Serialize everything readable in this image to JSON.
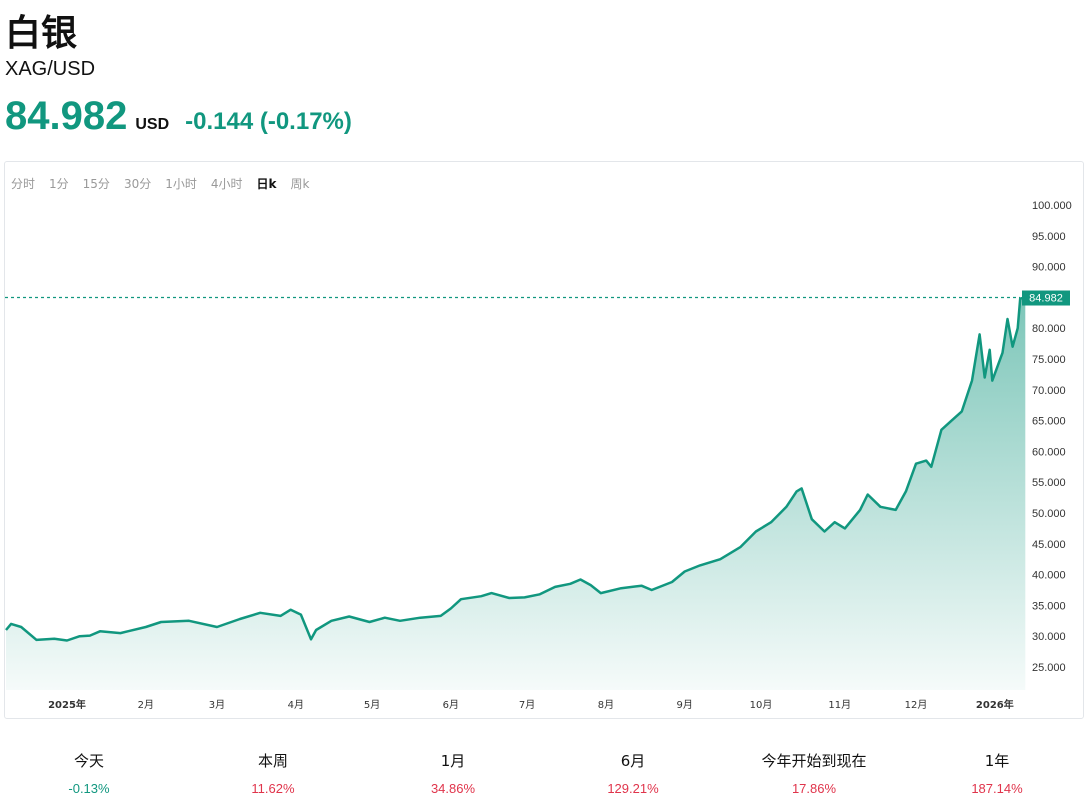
{
  "header": {
    "title": "白银",
    "symbol": "XAG/USD",
    "price": "84.982",
    "currency": "USD",
    "change": "-0.144 (-0.17%)",
    "change_color": "#11977f"
  },
  "tabs": [
    {
      "label": "分时"
    },
    {
      "label": "1分"
    },
    {
      "label": "15分"
    },
    {
      "label": "30分"
    },
    {
      "label": "1小时"
    },
    {
      "label": "4小时"
    },
    {
      "label": "日k",
      "active": true
    },
    {
      "label": "周k"
    }
  ],
  "stats": [
    {
      "label": "今天",
      "value": "-0.13%",
      "color": "#11977f"
    },
    {
      "label": "本周",
      "value": "11.62%",
      "color": "#e0344b"
    },
    {
      "label": "1月",
      "value": "34.86%",
      "color": "#e0344b"
    },
    {
      "label": "6月",
      "value": "129.21%",
      "color": "#e0344b"
    },
    {
      "label": "今年开始到现在",
      "value": "17.86%",
      "color": "#e0344b"
    },
    {
      "label": "1年",
      "value": "187.14%",
      "color": "#e0344b"
    }
  ],
  "chart_data": {
    "type": "area",
    "line_color": "#11977f",
    "current_value_label": "84.982",
    "ylim": [
      25,
      100
    ],
    "y_ticks": [
      "100.000",
      "95.000",
      "90.000",
      "85.000",
      "80.000",
      "75.000",
      "70.000",
      "65.000",
      "60.000",
      "55.000",
      "50.000",
      "45.000",
      "40.000",
      "35.000",
      "30.000",
      "25.000"
    ],
    "x_ticks": [
      {
        "label": "2025年",
        "date": "2025-01-01"
      },
      {
        "label": "2月",
        "date": "2025-02-01"
      },
      {
        "label": "3月",
        "date": "2025-03-01"
      },
      {
        "label": "4月",
        "date": "2025-04-01"
      },
      {
        "label": "5月",
        "date": "2025-05-01"
      },
      {
        "label": "6月",
        "date": "2025-06-01"
      },
      {
        "label": "7月",
        "date": "2025-07-01"
      },
      {
        "label": "8月",
        "date": "2025-08-01"
      },
      {
        "label": "9月",
        "date": "2025-09-01"
      },
      {
        "label": "10月",
        "date": "2025-10-01"
      },
      {
        "label": "11月",
        "date": "2025-11-01"
      },
      {
        "label": "12月",
        "date": "2025-12-01"
      },
      {
        "label": "2026年",
        "date": "2026-01-01"
      }
    ],
    "grid": false,
    "x": [
      "2024-12-08",
      "2024-12-10",
      "2024-12-14",
      "2024-12-20",
      "2024-12-27",
      "2025-01-01",
      "2025-01-06",
      "2025-01-10",
      "2025-01-14",
      "2025-01-22",
      "2025-02-01",
      "2025-02-07",
      "2025-02-18",
      "2025-03-01",
      "2025-03-10",
      "2025-03-18",
      "2025-03-26",
      "2025-03-30",
      "2025-04-03",
      "2025-04-07",
      "2025-04-09",
      "2025-04-15",
      "2025-04-22",
      "2025-04-30",
      "2025-05-06",
      "2025-05-12",
      "2025-05-20",
      "2025-05-28",
      "2025-06-01",
      "2025-06-05",
      "2025-06-13",
      "2025-06-17",
      "2025-06-24",
      "2025-06-30",
      "2025-07-06",
      "2025-07-12",
      "2025-07-18",
      "2025-07-22",
      "2025-07-26",
      "2025-07-30",
      "2025-08-07",
      "2025-08-15",
      "2025-08-19",
      "2025-08-27",
      "2025-09-01",
      "2025-09-07",
      "2025-09-15",
      "2025-09-23",
      "2025-09-29",
      "2025-10-05",
      "2025-10-11",
      "2025-10-15",
      "2025-10-17",
      "2025-10-21",
      "2025-10-26",
      "2025-10-30",
      "2025-11-03",
      "2025-11-09",
      "2025-11-12",
      "2025-11-17",
      "2025-11-23",
      "2025-11-27",
      "2025-12-01",
      "2025-12-05",
      "2025-12-07",
      "2025-12-11",
      "2025-12-15",
      "2025-12-19",
      "2025-12-23",
      "2025-12-26",
      "2025-12-28",
      "2025-12-30",
      "2025-12-31",
      "2026-01-04",
      "2026-01-06",
      "2026-01-08",
      "2026-01-10",
      "2026-01-11",
      "2026-01-13"
    ],
    "values": [
      31.0,
      32.0,
      31.5,
      29.4,
      29.6,
      29.3,
      30.0,
      30.1,
      30.8,
      30.5,
      31.5,
      32.3,
      32.5,
      31.5,
      32.8,
      33.8,
      33.3,
      34.3,
      33.5,
      29.5,
      31.0,
      32.5,
      33.2,
      32.3,
      33.0,
      32.5,
      33.0,
      33.3,
      34.5,
      36.0,
      36.5,
      37.0,
      36.2,
      36.3,
      36.8,
      38.0,
      38.5,
      39.2,
      38.3,
      37.0,
      37.8,
      38.2,
      37.5,
      38.8,
      40.5,
      41.5,
      42.5,
      44.5,
      47.0,
      48.5,
      51.0,
      53.5,
      54.0,
      49.0,
      47.0,
      48.5,
      47.5,
      50.5,
      53.0,
      51.0,
      50.5,
      53.5,
      58.0,
      58.5,
      57.5,
      63.5,
      65.0,
      66.5,
      71.5,
      79.0,
      72.0,
      76.5,
      71.5,
      76.0,
      81.5,
      77.0,
      80.0,
      84.8,
      84.982
    ]
  }
}
